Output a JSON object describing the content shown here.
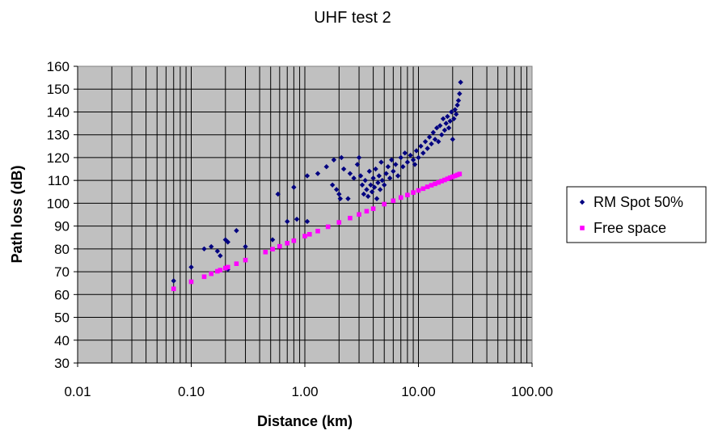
{
  "chart_data": {
    "type": "scatter",
    "title": "UHF test 2",
    "xlabel": "Distance (km)",
    "ylabel": "Path loss (dB)",
    "x_scale": "log",
    "xlim": [
      0.01,
      100
    ],
    "ylim": [
      30,
      160
    ],
    "x_ticks": [
      "0.01",
      "0.10",
      "1.00",
      "10.00",
      "100.00"
    ],
    "y_ticks": [
      "30",
      "40",
      "50",
      "60",
      "70",
      "80",
      "90",
      "100",
      "110",
      "120",
      "130",
      "140",
      "150",
      "160"
    ],
    "grid": true,
    "legend_position": "right",
    "series": [
      {
        "name": "RM Spot 50%",
        "color": "#000080",
        "marker": "diamond",
        "points": [
          [
            0.07,
            66
          ],
          [
            0.1,
            72
          ],
          [
            0.13,
            80
          ],
          [
            0.15,
            81
          ],
          [
            0.17,
            79
          ],
          [
            0.18,
            77
          ],
          [
            0.2,
            84
          ],
          [
            0.21,
            83
          ],
          [
            0.21,
            71
          ],
          [
            0.25,
            88
          ],
          [
            0.3,
            81
          ],
          [
            0.52,
            84
          ],
          [
            0.58,
            104
          ],
          [
            0.7,
            92
          ],
          [
            0.8,
            107
          ],
          [
            0.85,
            93
          ],
          [
            1.05,
            92
          ],
          [
            1.05,
            112
          ],
          [
            1.3,
            113
          ],
          [
            1.55,
            116
          ],
          [
            1.75,
            108
          ],
          [
            1.8,
            119
          ],
          [
            1.9,
            106
          ],
          [
            2.0,
            104
          ],
          [
            2.05,
            102
          ],
          [
            2.1,
            120
          ],
          [
            2.2,
            115
          ],
          [
            2.4,
            102
          ],
          [
            2.5,
            113
          ],
          [
            2.7,
            111
          ],
          [
            2.9,
            117
          ],
          [
            3.0,
            120
          ],
          [
            3.1,
            112
          ],
          [
            3.2,
            108
          ],
          [
            3.3,
            104
          ],
          [
            3.4,
            110
          ],
          [
            3.5,
            106
          ],
          [
            3.6,
            103
          ],
          [
            3.7,
            114
          ],
          [
            3.8,
            108
          ],
          [
            3.9,
            105
          ],
          [
            4.0,
            111
          ],
          [
            4.1,
            107
          ],
          [
            4.2,
            115
          ],
          [
            4.3,
            102
          ],
          [
            4.4,
            109
          ],
          [
            4.5,
            112
          ],
          [
            4.6,
            106
          ],
          [
            4.7,
            118
          ],
          [
            4.8,
            110
          ],
          [
            5.0,
            108
          ],
          [
            5.2,
            113
          ],
          [
            5.4,
            116
          ],
          [
            5.6,
            111
          ],
          [
            5.8,
            119
          ],
          [
            6.0,
            114
          ],
          [
            6.3,
            117
          ],
          [
            6.6,
            112
          ],
          [
            7.0,
            120
          ],
          [
            7.3,
            116
          ],
          [
            7.6,
            122
          ],
          [
            8.0,
            118
          ],
          [
            8.5,
            121
          ],
          [
            9.0,
            119
          ],
          [
            9.3,
            117
          ],
          [
            9.6,
            123
          ],
          [
            10.0,
            120
          ],
          [
            10.5,
            125
          ],
          [
            11.0,
            122
          ],
          [
            11.5,
            127
          ],
          [
            12.0,
            124
          ],
          [
            12.5,
            129
          ],
          [
            13.0,
            126
          ],
          [
            13.5,
            131
          ],
          [
            14.0,
            128
          ],
          [
            14.5,
            133
          ],
          [
            15.0,
            127
          ],
          [
            15.5,
            134
          ],
          [
            16.0,
            130
          ],
          [
            16.5,
            137
          ],
          [
            17.0,
            132
          ],
          [
            17.5,
            135
          ],
          [
            18.0,
            138
          ],
          [
            18.5,
            133
          ],
          [
            19.0,
            136
          ],
          [
            19.5,
            140
          ],
          [
            20.0,
            128
          ],
          [
            20.5,
            137
          ],
          [
            21.0,
            141
          ],
          [
            21.5,
            139
          ],
          [
            22.0,
            143
          ],
          [
            22.5,
            145
          ],
          [
            23.0,
            148
          ],
          [
            23.5,
            153
          ]
        ]
      },
      {
        "name": "Free space",
        "color": "#FF00FF",
        "marker": "square",
        "points": [
          [
            0.07,
            62.5
          ],
          [
            0.1,
            65.6
          ],
          [
            0.13,
            67.8
          ],
          [
            0.15,
            69.1
          ],
          [
            0.17,
            70.2
          ],
          [
            0.18,
            70.7
          ],
          [
            0.2,
            71.6
          ],
          [
            0.21,
            72.0
          ],
          [
            0.25,
            73.5
          ],
          [
            0.3,
            75.1
          ],
          [
            0.45,
            78.6
          ],
          [
            0.52,
            79.9
          ],
          [
            0.6,
            81.1
          ],
          [
            0.7,
            82.5
          ],
          [
            0.8,
            83.6
          ],
          [
            1.0,
            85.6
          ],
          [
            1.1,
            86.4
          ],
          [
            1.3,
            87.8
          ],
          [
            1.6,
            89.7
          ],
          [
            2.0,
            91.6
          ],
          [
            2.5,
            93.5
          ],
          [
            3.0,
            95.1
          ],
          [
            3.5,
            96.5
          ],
          [
            4.0,
            97.6
          ],
          [
            5.0,
            99.6
          ],
          [
            6.0,
            101.1
          ],
          [
            7.0,
            102.5
          ],
          [
            8.0,
            103.6
          ],
          [
            9.0,
            104.7
          ],
          [
            10.0,
            105.6
          ],
          [
            11.0,
            106.4
          ],
          [
            12.0,
            107.2
          ],
          [
            13.0,
            107.9
          ],
          [
            14.0,
            108.5
          ],
          [
            15.0,
            109.1
          ],
          [
            16.0,
            109.7
          ],
          [
            17.0,
            110.2
          ],
          [
            18.0,
            110.7
          ],
          [
            19.0,
            111.2
          ],
          [
            20.0,
            111.6
          ],
          [
            21.0,
            112.0
          ],
          [
            22.0,
            112.4
          ],
          [
            23.0,
            112.8
          ]
        ]
      }
    ]
  }
}
